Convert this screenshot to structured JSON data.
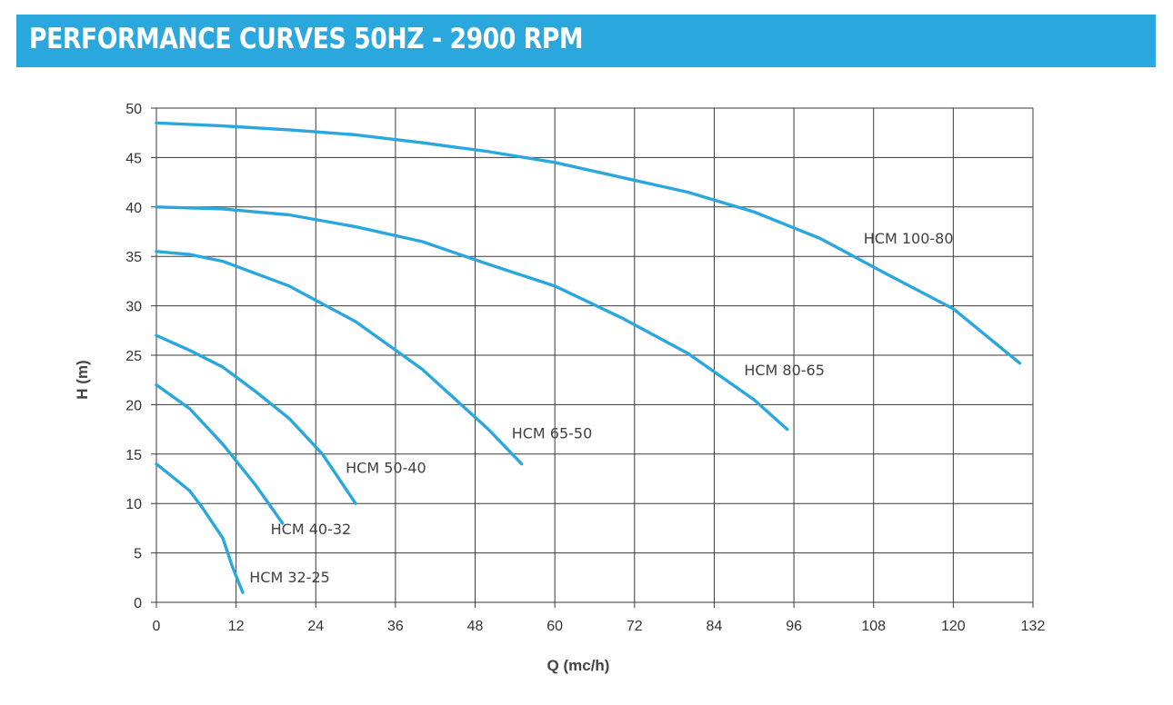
{
  "header": {
    "title": "PERFORMANCE CURVES 50HZ - 2900 RPM"
  },
  "colors": {
    "banner": "#2aa7dd",
    "curve": "#2aa7dd",
    "grid": "#3a3a3a"
  },
  "chart_data": {
    "type": "line",
    "title": "",
    "xlabel": "Q (mc/h)",
    "ylabel": "H (m)",
    "xlim": [
      0,
      132
    ],
    "ylim": [
      0,
      50
    ],
    "xticks": [
      "0",
      "12",
      "24",
      "36",
      "48",
      "60",
      "72",
      "84",
      "96",
      "108",
      "120",
      "132"
    ],
    "yticks": [
      "0",
      "5",
      "10",
      "15",
      "20",
      "25",
      "30",
      "35",
      "40",
      "45",
      "50"
    ],
    "grid": true,
    "legend": "none",
    "series": [
      {
        "name": "HCM 32-25",
        "x": [
          0,
          5,
          7,
          10,
          11.5,
          13
        ],
        "y": [
          14,
          11.3,
          9.5,
          6.5,
          3.5,
          1
        ]
      },
      {
        "name": "HCM 40-32",
        "x": [
          0,
          5,
          10,
          15,
          19
        ],
        "y": [
          22,
          19.6,
          16,
          11.8,
          8
        ]
      },
      {
        "name": "HCM 50-40",
        "x": [
          0,
          5,
          10,
          15,
          20,
          25,
          30
        ],
        "y": [
          27,
          25.5,
          23.8,
          21.3,
          18.6,
          15,
          10
        ]
      },
      {
        "name": "HCM 65-50",
        "x": [
          0,
          5,
          10,
          20,
          30,
          40,
          50,
          55
        ],
        "y": [
          35.5,
          35.2,
          34.5,
          32,
          28.4,
          23.6,
          17.5,
          14
        ]
      },
      {
        "name": "HCM 80-65",
        "x": [
          0,
          10,
          20,
          30,
          40,
          50,
          60,
          70,
          80,
          90,
          95
        ],
        "y": [
          40,
          39.8,
          39.2,
          38,
          36.5,
          34.2,
          32,
          28.8,
          25.2,
          20.5,
          17.5
        ]
      },
      {
        "name": "HCM 100-80",
        "x": [
          0,
          10,
          20,
          30,
          40,
          50,
          60,
          70,
          80,
          90,
          100,
          110,
          120,
          130
        ],
        "y": [
          48.5,
          48.2,
          47.8,
          47.3,
          46.5,
          45.6,
          44.5,
          43,
          41.5,
          39.5,
          36.8,
          33.2,
          29.7,
          24.2
        ]
      }
    ],
    "labels": [
      {
        "text": "HCM 32-25",
        "x": 14,
        "y": 2
      },
      {
        "text": "HCM 40-32",
        "x": 17.2,
        "y": 6.9
      },
      {
        "text": "HCM 50-40",
        "x": 28.5,
        "y": 13.1
      },
      {
        "text": "HCM 65-50",
        "x": 53.5,
        "y": 16.6
      },
      {
        "text": "HCM 80-65",
        "x": 88.5,
        "y": 23
      },
      {
        "text": "HCM 100-80",
        "x": 106.5,
        "y": 36.3
      }
    ]
  }
}
